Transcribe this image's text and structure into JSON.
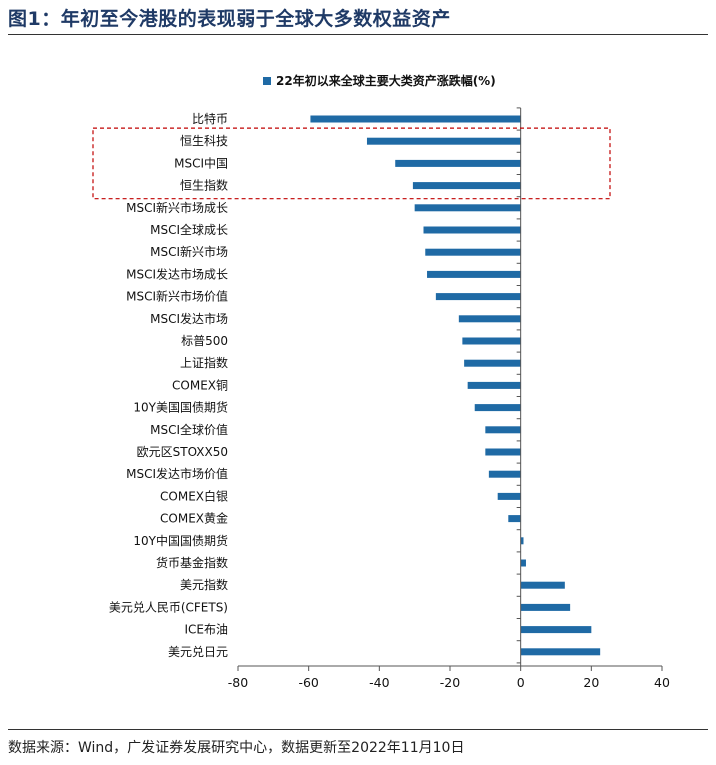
{
  "figure": {
    "title": "图1：年初至今港股的表现弱于全球大多数权益资产",
    "source": "数据来源：Wind，广发证券发展研究中心，数据更新至2022年11月10日"
  },
  "colors": {
    "bar": "#1f6aa5",
    "highlight_box": "#c00000",
    "title": "#1f3a66"
  },
  "chart_data": {
    "type": "bar",
    "orientation": "horizontal",
    "title": "22年初以来全球主要大类资产涨跌幅(%)",
    "xlabel": "",
    "ylabel": "",
    "xlim": [
      -80,
      40
    ],
    "xticks": [
      -80,
      -60,
      -40,
      -20,
      0,
      20,
      40
    ],
    "grid": false,
    "legend": "top-center",
    "series": [
      {
        "name": "22年初以来全球主要大类资产涨跌幅(%)",
        "values": [
          -59.5,
          -43.5,
          -35.5,
          -30.5,
          -30,
          -27.5,
          -27,
          -26.5,
          -24,
          -17.5,
          -16.5,
          -16,
          -15,
          -13,
          -10,
          -10,
          -9,
          -6.5,
          -3.5,
          0.8,
          1.5,
          12.5,
          14,
          20,
          22.5
        ]
      }
    ],
    "categories": [
      "比特币",
      "恒生科技",
      "MSCI中国",
      "恒生指数",
      "MSCI新兴市场成长",
      "MSCI全球成长",
      "MSCI新兴市场",
      "MSCI发达市场成长",
      "MSCI新兴市场价值",
      "MSCI发达市场",
      "标普500",
      "上证指数",
      "COMEX铜",
      "10Y美国国债期货",
      "MSCI全球价值",
      "欧元区STOXX50",
      "MSCI发达市场价值",
      "COMEX白银",
      "COMEX黄金",
      "10Y中国国债期货",
      "货币基金指数",
      "美元指数",
      "美元兑人民币(CFETS)",
      "ICE布油",
      "美元兑日元"
    ],
    "highlighted_categories": [
      "恒生科技",
      "MSCI中国",
      "恒生指数"
    ]
  }
}
